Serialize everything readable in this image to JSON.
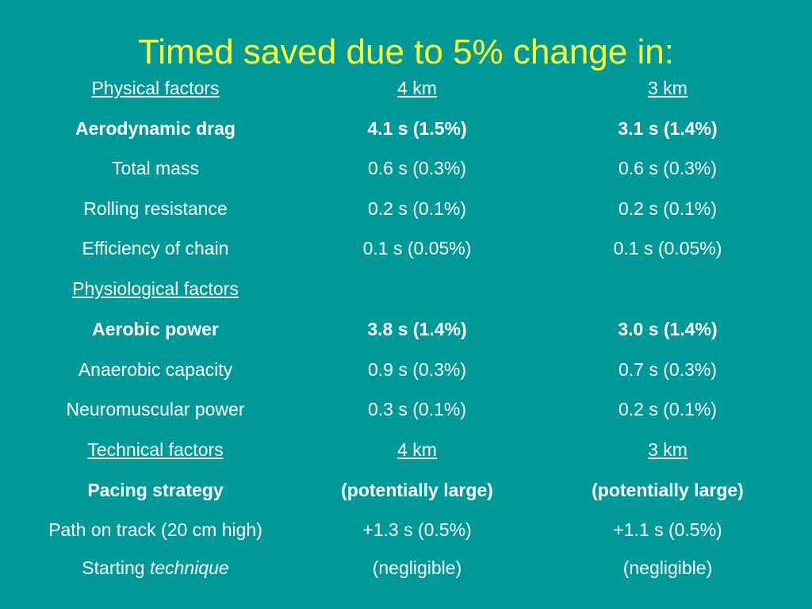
{
  "title": "Timed saved due to 5% change in:",
  "rows": [
    {
      "label": "Physical factors",
      "km4": "4 km",
      "km3": "3 km"
    },
    {
      "label": "Aerodynamic drag",
      "km4": "4.1 s (1.5%)",
      "km3": "3.1 s (1.4%)"
    },
    {
      "label": "Total mass",
      "km4": "0.6 s (0.3%)",
      "km3": "0.6 s (0.3%)"
    },
    {
      "label": "Rolling resistance",
      "km4": "0.2 s (0.1%)",
      "km3": "0.2 s (0.1%)"
    },
    {
      "label": "Efficiency of chain",
      "km4": "0.1 s (0.05%)",
      "km3": "0.1 s (0.05%)"
    },
    {
      "label": "Physiological factors",
      "km4": "",
      "km3": ""
    },
    {
      "label": "Aerobic power",
      "km4": "3.8 s (1.4%)",
      "km3": "3.0 s (1.4%)"
    },
    {
      "label": "Anaerobic capacity",
      "km4": "0.9 s (0.3%)",
      "km3": "0.7 s (0.3%)"
    },
    {
      "label": "Neuromuscular power",
      "km4": "0.3 s (0.1%)",
      "km3": "0.2 s (0.1%)"
    },
    {
      "label": "Technical factors",
      "km4": "4 km",
      "km3": "3 km"
    },
    {
      "label": "Pacing strategy",
      "km4": "(potentially large)",
      "km3": "(potentially large)"
    },
    {
      "label": "Path on track (20 cm high)",
      "km4": "+1.3 s (0.5%)",
      "km3": "+1.1 s (0.5%)"
    },
    {
      "label_prefix": "Starting ",
      "label_emphasis": "technique",
      "km4": "(negligible)",
      "km3": "(negligible)"
    }
  ]
}
